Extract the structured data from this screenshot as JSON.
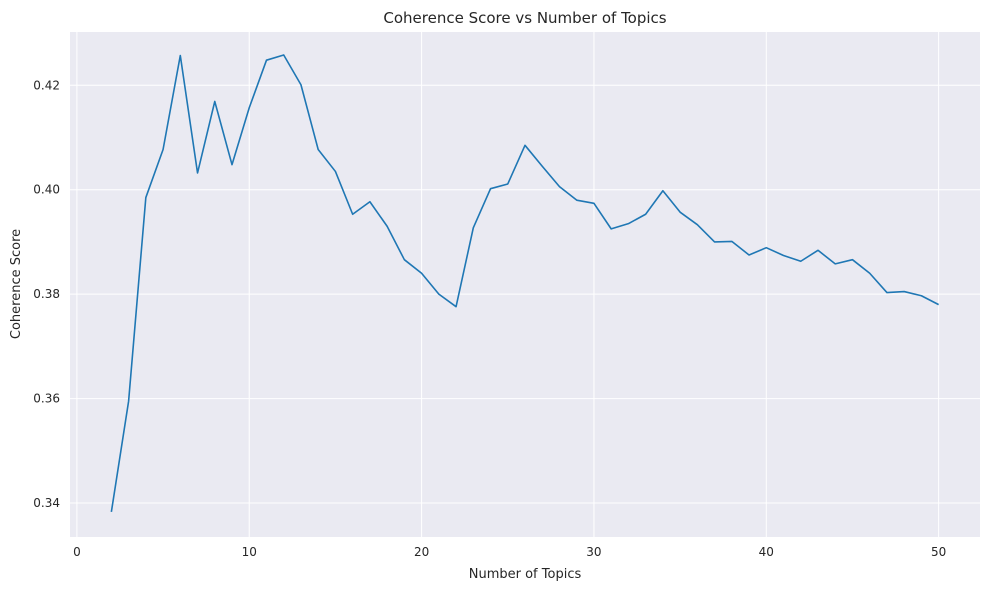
{
  "chart_data": {
    "type": "line",
    "title": "Coherence Score vs Number of Topics",
    "xlabel": "Number of Topics",
    "ylabel": "Coherence Score",
    "xlim": [
      -0.4,
      52.4
    ],
    "ylim": [
      0.3335,
      0.4302
    ],
    "x_ticks": [
      0,
      10,
      20,
      30,
      40,
      50
    ],
    "y_ticks": [
      0.34,
      0.36,
      0.38,
      0.4,
      0.42
    ],
    "x_tick_labels": [
      "0",
      "10",
      "20",
      "30",
      "40",
      "50"
    ],
    "y_tick_labels": [
      "0.34",
      "0.36",
      "0.38",
      "0.40",
      "0.42"
    ],
    "grid": true,
    "background": "#eaeaf2",
    "grid_color": "#ffffff",
    "line_color": "#1f77b4",
    "series": [
      {
        "x": [
          2,
          3,
          4,
          5,
          6,
          7,
          8,
          9,
          10,
          11,
          12,
          13,
          14,
          15,
          16,
          17,
          18,
          19,
          20,
          21,
          22,
          23,
          24,
          25,
          26,
          27,
          28,
          29,
          30,
          31,
          32,
          33,
          34,
          35,
          36,
          37,
          38,
          39,
          40,
          41,
          42,
          43,
          44,
          45,
          46,
          47,
          48,
          49,
          50
        ],
        "values": [
          0.3383,
          0.3595,
          0.3985,
          0.4077,
          0.4257,
          0.4032,
          0.4169,
          0.4048,
          0.4157,
          0.4248,
          0.4258,
          0.4201,
          0.4077,
          0.4035,
          0.3953,
          0.3977,
          0.393,
          0.3866,
          0.384,
          0.38,
          0.3776,
          0.3927,
          0.4002,
          0.4011,
          0.4085,
          0.4045,
          0.4006,
          0.398,
          0.3974,
          0.3925,
          0.3935,
          0.3953,
          0.3998,
          0.3957,
          0.3933,
          0.39,
          0.3901,
          0.3875,
          0.3889,
          0.3874,
          0.3863,
          0.3884,
          0.3858,
          0.3866,
          0.384,
          0.3803,
          0.3805,
          0.3797,
          0.378
        ]
      }
    ]
  }
}
